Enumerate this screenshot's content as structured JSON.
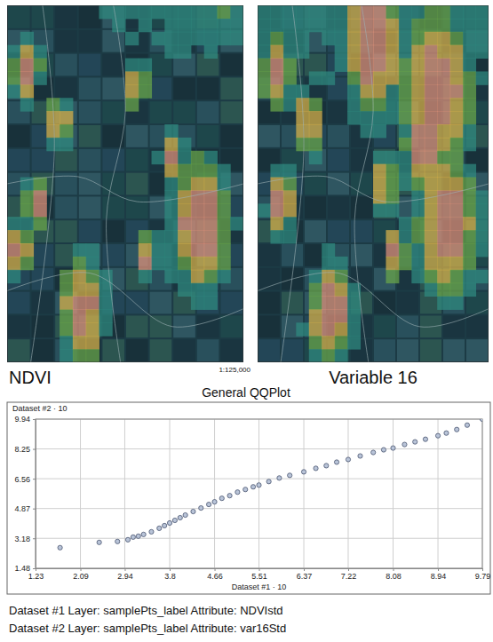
{
  "maps": [
    {
      "title": "NDVI"
    },
    {
      "title": "Variable 16"
    }
  ],
  "scale_label": "1:125,000",
  "chart_data": {
    "type": "scatter",
    "title": "General QQPlot",
    "x_label": "Dataset #1 · 10",
    "y_label": "Dataset #2 · 10",
    "x": [
      1.7,
      2.45,
      2.8,
      3.0,
      3.1,
      3.2,
      3.3,
      3.45,
      3.6,
      3.7,
      3.8,
      3.9,
      4.0,
      4.1,
      4.25,
      4.4,
      4.55,
      4.66,
      4.8,
      4.95,
      5.1,
      5.25,
      5.4,
      5.51,
      5.7,
      5.9,
      6.1,
      6.37,
      6.6,
      6.8,
      7.0,
      7.22,
      7.45,
      7.7,
      7.9,
      8.08,
      8.3,
      8.5,
      8.7,
      8.94,
      9.1,
      9.3,
      9.5,
      9.79
    ],
    "values": [
      2.65,
      2.95,
      3.0,
      3.1,
      3.25,
      3.3,
      3.4,
      3.55,
      3.75,
      3.9,
      4.05,
      4.2,
      4.35,
      4.5,
      4.7,
      4.9,
      5.1,
      5.25,
      5.45,
      5.6,
      5.8,
      5.95,
      6.1,
      6.2,
      6.4,
      6.6,
      6.75,
      6.95,
      7.15,
      7.3,
      7.5,
      7.65,
      7.85,
      8.05,
      8.2,
      8.3,
      8.5,
      8.65,
      8.8,
      9.0,
      9.15,
      9.35,
      9.6,
      9.94
    ],
    "xlim": [
      1.23,
      9.79
    ],
    "ylim": [
      1.48,
      9.94
    ],
    "xticks": [
      1.23,
      2.09,
      2.94,
      3.8,
      4.66,
      5.51,
      6.37,
      7.22,
      8.08,
      8.94,
      9.79
    ],
    "yticks": [
      1.48,
      3.18,
      4.87,
      6.56,
      8.25,
      9.94
    ],
    "grid": true,
    "marker": "circle"
  },
  "captions": [
    "Dataset #1 Layer: samplePts_label Attribute: NDVIstd",
    "Dataset #2 Layer: samplePts_label Attribute: var16Std"
  ]
}
